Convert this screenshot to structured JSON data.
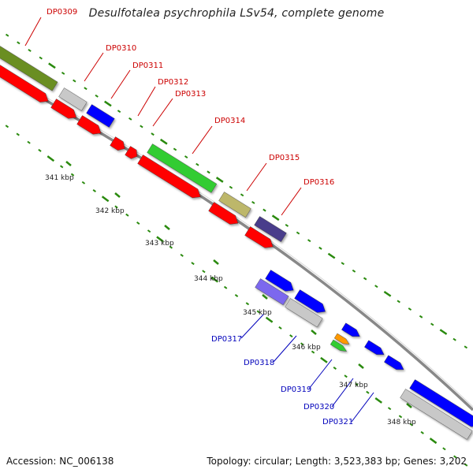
{
  "header": {
    "title": "Desulfotalea psychrophila LSv54, complete genome"
  },
  "footer": {
    "accession": "Accession: NC_006138",
    "topology": "Topology: circular; Length: 3,523,383 bp; Genes: 3,202"
  },
  "colors": {
    "label_red": "#cc0000",
    "label_blue": "#0000bb",
    "backbone": "#808080",
    "tick_green": "#2a8a0e",
    "cds_red": "#ff0000",
    "olive": "#6b8e23",
    "silver": "#c8c8c8",
    "blue": "#0000ff",
    "green": "#33cc33",
    "khaki": "#bdb76b",
    "darkslate": "#483d8b",
    "slateblue": "#7b68ee",
    "orange": "#ff9900"
  },
  "genes_top": [
    {
      "label": "DP0309",
      "color": "olive"
    },
    {
      "label": "DP0310",
      "color": "silver"
    },
    {
      "label": "DP0311",
      "color": "blue"
    },
    {
      "label": "DP0312",
      "color": "cds_red"
    },
    {
      "label": "DP0313",
      "color": "cds_red"
    },
    {
      "label": "DP0314",
      "color": "green"
    },
    {
      "label": "DP0315",
      "color": "khaki"
    },
    {
      "label": "DP0316",
      "color": "darkslate"
    }
  ],
  "genes_bottom": [
    {
      "label": "DP0317",
      "color": "slateblue"
    },
    {
      "label": "DP0318",
      "color": "silver"
    },
    {
      "label": "DP0319",
      "color": "green"
    },
    {
      "label": "DP0320",
      "color": "orange"
    },
    {
      "label": "DP0321",
      "color": "blue"
    }
  ],
  "scale_labels": [
    "341 kbp",
    "342 kbp",
    "343 kbp",
    "344 kbp",
    "345 kbp",
    "346 kbp",
    "347 kbp",
    "348 kbp"
  ]
}
